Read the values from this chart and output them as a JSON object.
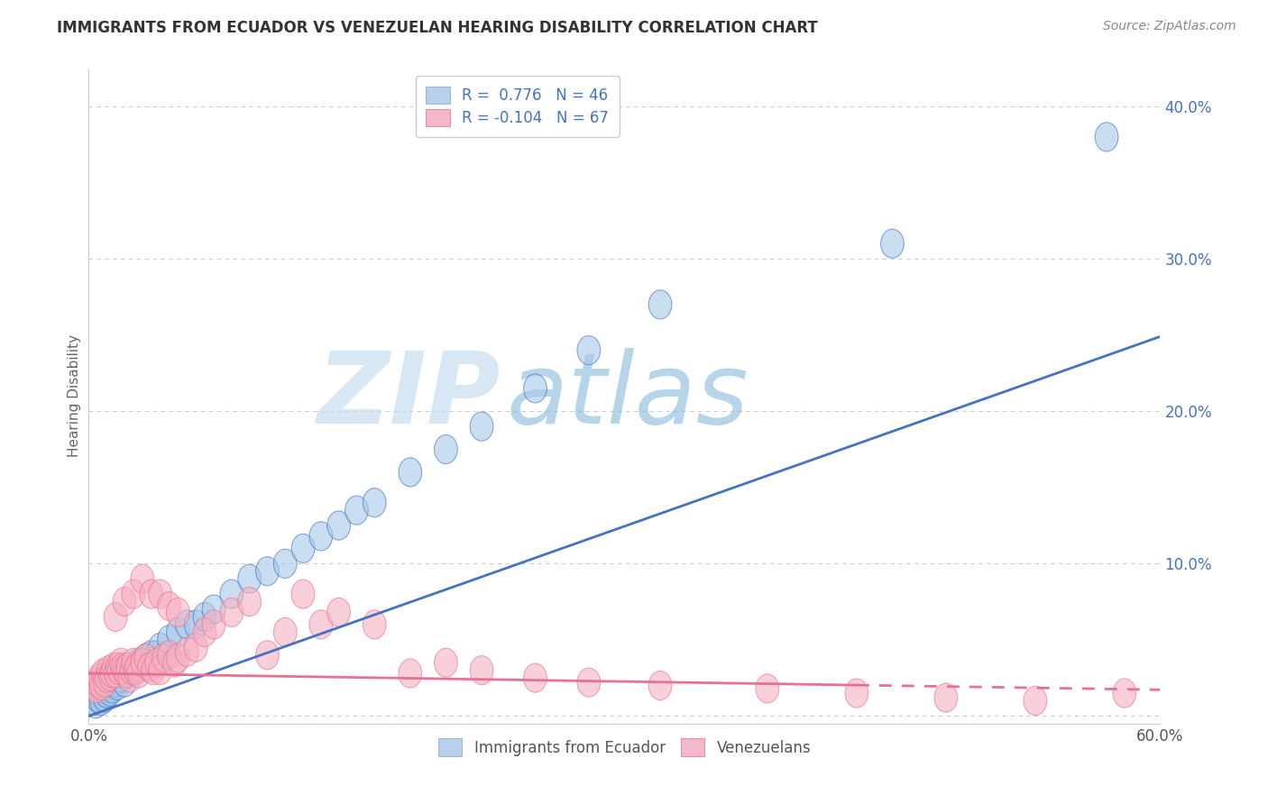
{
  "title": "IMMIGRANTS FROM ECUADOR VS VENEZUELAN HEARING DISABILITY CORRELATION CHART",
  "source": "Source: ZipAtlas.com",
  "ylabel": "Hearing Disability",
  "yticks": [
    0.0,
    0.1,
    0.2,
    0.3,
    0.4
  ],
  "ytick_labels": [
    "",
    "10.0%",
    "20.0%",
    "30.0%",
    "40.0%"
  ],
  "xlim": [
    0.0,
    0.6
  ],
  "ylim": [
    -0.005,
    0.425
  ],
  "watermark_zip": "ZIP",
  "watermark_atlas": "atlas",
  "legend1_label": "R =  0.776   N = 46",
  "legend2_label": "R = -0.104   N = 67",
  "legend1_face_color": "#b8d0ea",
  "legend2_face_color": "#f5b8c8",
  "series1_color": "#a8c8e8",
  "series2_color": "#f5b0c0",
  "line1_color": "#4472c4",
  "line2_color": "#e87090",
  "grid_color": "#cccccc",
  "background_color": "#ffffff",
  "series1_name": "Immigrants from Ecuador",
  "series2_name": "Venezuelans",
  "line1_slope": 0.415,
  "line1_intercept": 0.0,
  "line2_slope": -0.018,
  "line2_intercept": 0.028,
  "line2_dash_start_x": 0.43,
  "title_fontsize": 12,
  "source_fontsize": 10,
  "tick_fontsize": 12,
  "ylabel_fontsize": 11
}
